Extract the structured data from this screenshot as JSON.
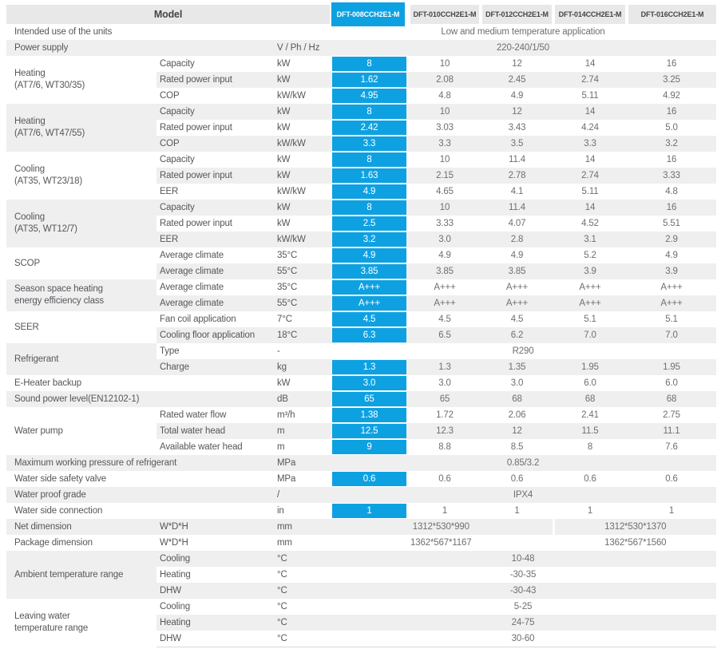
{
  "theme": {
    "accent": "#0ea1e2",
    "headerbg": "#e8e8e9",
    "stripe": "#efeff0",
    "labeltext": "#57575b",
    "valuetext": "#6f6f71",
    "modeltext": "#454549",
    "bottomline": "#d8d8d8"
  },
  "header": {
    "model_label": "Model",
    "models": [
      "DFT-008CCH2E1-M",
      "DFT-010CCH2E1-M",
      "DFT-012CCH2E1-M",
      "DFT-014CCH2E1-M",
      "DFT-016CCH2E1-M"
    ],
    "highlighted_model_index": 0
  },
  "sections": [
    {
      "label_lines": [
        "Intended use of the units"
      ],
      "label_cols": 2,
      "rows": [
        {
          "unit": "",
          "span": "Low and medium temperature application"
        }
      ]
    },
    {
      "label_lines": [
        "Power supply"
      ],
      "label_cols": 2,
      "rows": [
        {
          "unit": "V / Ph / Hz",
          "span": "220-240/1/50"
        }
      ]
    },
    {
      "label_lines": [
        "Heating",
        "(AT7/6, WT30/35)"
      ],
      "label_cols": 1,
      "rows": [
        {
          "label": "Capacity",
          "unit": "kW",
          "values": [
            "8",
            "10",
            "12",
            "14",
            "16"
          ]
        },
        {
          "label": "Rated power input",
          "unit": "kW",
          "values": [
            "1.62",
            "2.08",
            "2.45",
            "2.74",
            "3.25"
          ]
        },
        {
          "label": "COP",
          "unit": "kW/kW",
          "values": [
            "4.95",
            "4.8",
            "4.9",
            "5.11",
            "4.92"
          ]
        }
      ]
    },
    {
      "label_lines": [
        "Heating",
        "(AT7/6, WT47/55)"
      ],
      "label_cols": 1,
      "rows": [
        {
          "label": "Capacity",
          "unit": "kW",
          "values": [
            "8",
            "10",
            "12",
            "14",
            "16"
          ]
        },
        {
          "label": "Rated power input",
          "unit": "kW",
          "values": [
            "2.42",
            "3.03",
            "3.43",
            "4.24",
            "5.0"
          ]
        },
        {
          "label": "COP",
          "unit": "kW/kW",
          "values": [
            "3.3",
            "3.3",
            "3.5",
            "3.3",
            "3.2"
          ]
        }
      ]
    },
    {
      "label_lines": [
        "Cooling",
        "(AT35, WT23/18)"
      ],
      "label_cols": 1,
      "rows": [
        {
          "label": "Capacity",
          "unit": "kW",
          "values": [
            "8",
            "10",
            "11.4",
            "14",
            "16"
          ]
        },
        {
          "label": "Rated power input",
          "unit": "kW",
          "values": [
            "1.63",
            "2.15",
            "2.78",
            "2.74",
            "3.33"
          ]
        },
        {
          "label": "EER",
          "unit": "kW/kW",
          "values": [
            "4.9",
            "4.65",
            "4.1",
            "5.11",
            "4.8"
          ]
        }
      ]
    },
    {
      "label_lines": [
        "Cooling",
        "(AT35, WT12/7)"
      ],
      "label_cols": 1,
      "rows": [
        {
          "label": "Capacity",
          "unit": "kW",
          "values": [
            "8",
            "10",
            "11.4",
            "14",
            "16"
          ]
        },
        {
          "label": "Rated power input",
          "unit": "kW",
          "values": [
            "2.5",
            "3.33",
            "4.07",
            "4.52",
            "5.51"
          ]
        },
        {
          "label": "EER",
          "unit": "kW/kW",
          "values": [
            "3.2",
            "3.0",
            "2.8",
            "3.1",
            "2.9"
          ]
        }
      ]
    },
    {
      "label_lines": [
        "SCOP"
      ],
      "label_cols": 1,
      "rows": [
        {
          "label": "Average climate",
          "unit": "35°C",
          "values": [
            "4.9",
            "4.9",
            "4.9",
            "5.2",
            "4.9"
          ]
        },
        {
          "label": "Average climate",
          "unit": "55°C",
          "values": [
            "3.85",
            "3.85",
            "3.85",
            "3.9",
            "3.9"
          ]
        }
      ]
    },
    {
      "label_lines": [
        "Season space heating",
        "energy efficiency class"
      ],
      "label_cols": 1,
      "rows": [
        {
          "label": "Average climate",
          "unit": "35°C",
          "values": [
            "A+++",
            "A+++",
            "A+++",
            "A+++",
            "A+++"
          ]
        },
        {
          "label": "Average climate",
          "unit": "55°C",
          "values": [
            "A+++",
            "A+++",
            "A+++",
            "A+++",
            "A+++"
          ]
        }
      ]
    },
    {
      "label_lines": [
        "SEER"
      ],
      "label_cols": 1,
      "rows": [
        {
          "label": "Fan coil application",
          "unit": "7°C",
          "values": [
            "4.5",
            "4.5",
            "4.5",
            "5.1",
            "5.1"
          ]
        },
        {
          "label": "Cooling floor application",
          "unit": "18°C",
          "values": [
            "6.3",
            "6.5",
            "6.2",
            "7.0",
            "7.0"
          ]
        }
      ]
    },
    {
      "label_lines": [
        "Refrigerant"
      ],
      "label_cols": 1,
      "rows": [
        {
          "label": "Type",
          "unit": "-",
          "span": "R290"
        },
        {
          "label": "Charge",
          "unit": "kg",
          "values": [
            "1.3",
            "1.3",
            "1.35",
            "1.95",
            "1.95"
          ]
        }
      ]
    },
    {
      "label_lines": [
        "E-Heater backup"
      ],
      "label_cols": 2,
      "rows": [
        {
          "unit": "kW",
          "values": [
            "3.0",
            "3.0",
            "3.0",
            "6.0",
            "6.0"
          ]
        }
      ]
    },
    {
      "label_lines": [
        "Sound power level(EN12102-1)"
      ],
      "label_cols": 2,
      "rows": [
        {
          "unit": "dB",
          "values": [
            "65",
            "65",
            "68",
            "68",
            "68"
          ]
        }
      ]
    },
    {
      "label_lines": [
        "Water pump"
      ],
      "label_cols": 1,
      "rows": [
        {
          "label": "Rated water flow",
          "unit": "m³/h",
          "values": [
            "1.38",
            "1.72",
            "2.06",
            "2.41",
            "2.75"
          ]
        },
        {
          "label": "Total water head",
          "unit": "m",
          "values": [
            "12.5",
            "12.3",
            "12",
            "11.5",
            "11.1"
          ]
        },
        {
          "label": "Available water head",
          "unit": "m",
          "values": [
            "9",
            "8.8",
            "8.5",
            "8",
            "7.6"
          ]
        }
      ]
    },
    {
      "label_lines": [
        "Maximum working pressure of refrigerant"
      ],
      "label_cols": 2,
      "rows": [
        {
          "unit": "MPa",
          "span": "0.85/3.2"
        }
      ]
    },
    {
      "label_lines": [
        "Water side safety valve"
      ],
      "label_cols": 2,
      "rows": [
        {
          "unit": "MPa",
          "values": [
            "0.6",
            "0.6",
            "0.6",
            "0.6",
            "0.6"
          ]
        }
      ]
    },
    {
      "label_lines": [
        "Water proof grade"
      ],
      "label_cols": 2,
      "rows": [
        {
          "unit": "/",
          "span": "IPX4"
        }
      ]
    },
    {
      "label_lines": [
        "Water side connection"
      ],
      "label_cols": 2,
      "rows": [
        {
          "unit": "in",
          "values": [
            "1",
            "1",
            "1",
            "1",
            "1"
          ]
        }
      ]
    },
    {
      "label_lines": [
        "Net dimension"
      ],
      "label_cols": 1,
      "rows": [
        {
          "label": "W*D*H",
          "unit": "mm",
          "span2": [
            "1312*530*990",
            "1312*530*1370"
          ]
        }
      ]
    },
    {
      "label_lines": [
        "Package dimension"
      ],
      "label_cols": 1,
      "rows": [
        {
          "label": "W*D*H",
          "unit": "mm",
          "span2": [
            "1362*567*1167",
            "1362*567*1560"
          ]
        }
      ]
    },
    {
      "label_lines": [
        "Ambient temperature range"
      ],
      "label_cols": 1,
      "rows": [
        {
          "label": "Cooling",
          "unit": "°C",
          "span": "10-48"
        },
        {
          "label": "Heating",
          "unit": "°C",
          "span": "-30-35"
        },
        {
          "label": "DHW",
          "unit": "°C",
          "span": "-30-43"
        }
      ]
    },
    {
      "label_lines": [
        "Leaving water",
        "temperature range"
      ],
      "label_cols": 1,
      "rows": [
        {
          "label": "Cooling",
          "unit": "°C",
          "span": "5-25"
        },
        {
          "label": "Heating",
          "unit": "°C",
          "span": "24-75"
        },
        {
          "label": "DHW",
          "unit": "°C",
          "span": "30-60"
        }
      ]
    }
  ]
}
